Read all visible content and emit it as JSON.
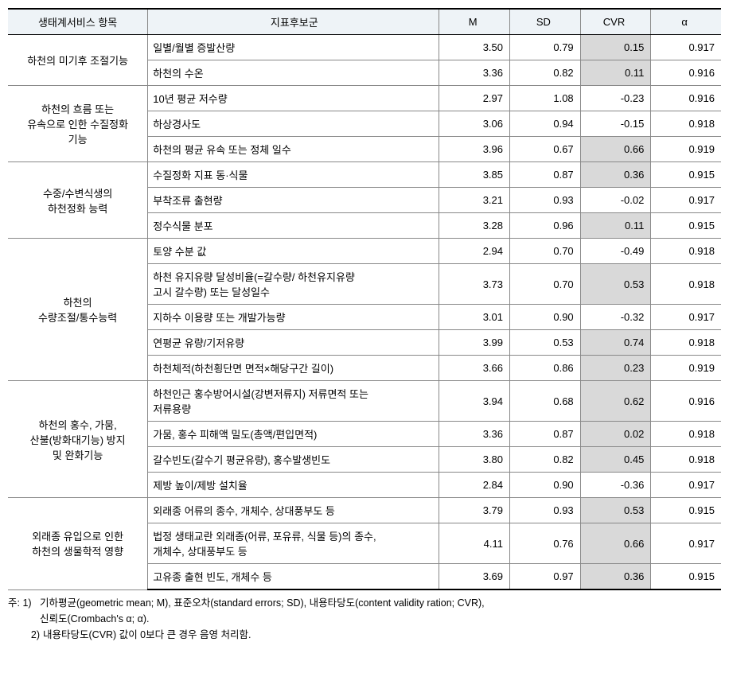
{
  "header": {
    "category": "생태계서비스 항목",
    "indicator": "지표후보군",
    "m": "M",
    "sd": "SD",
    "cvr": "CVR",
    "alpha": "α"
  },
  "colors": {
    "header_bg": "#eef3f7",
    "shade_bg": "#d9d9d9",
    "border": "#888888",
    "strong_border": "#000000",
    "text": "#000000",
    "background": "#ffffff"
  },
  "groups": [
    {
      "category": "하천의 미기후 조절기능",
      "rows": [
        {
          "indicator": "일별/월별 증발산량",
          "m": "3.50",
          "sd": "0.79",
          "cvr": "0.15",
          "cvr_shaded": true,
          "alpha": "0.917"
        },
        {
          "indicator": "하천의 수온",
          "m": "3.36",
          "sd": "0.82",
          "cvr": "0.11",
          "cvr_shaded": true,
          "alpha": "0.916"
        }
      ]
    },
    {
      "category": "하천의 흐름 또는\n유속으로 인한 수질정화\n기능",
      "rows": [
        {
          "indicator": "10년 평균 저수량",
          "m": "2.97",
          "sd": "1.08",
          "cvr": "-0.23",
          "cvr_shaded": false,
          "alpha": "0.916"
        },
        {
          "indicator": "하상경사도",
          "m": "3.06",
          "sd": "0.94",
          "cvr": "-0.15",
          "cvr_shaded": false,
          "alpha": "0.918"
        },
        {
          "indicator": "하천의 평균 유속 또는 정체 일수",
          "m": "3.96",
          "sd": "0.67",
          "cvr": "0.66",
          "cvr_shaded": true,
          "alpha": "0.919"
        }
      ]
    },
    {
      "category": "수중/수변식생의\n하천정화 능력",
      "rows": [
        {
          "indicator": "수질정화 지표 동·식물",
          "m": "3.85",
          "sd": "0.87",
          "cvr": "0.36",
          "cvr_shaded": true,
          "alpha": "0.915"
        },
        {
          "indicator": "부착조류 출현량",
          "m": "3.21",
          "sd": "0.93",
          "cvr": "-0.02",
          "cvr_shaded": false,
          "alpha": "0.917"
        },
        {
          "indicator": "정수식물 분포",
          "m": "3.28",
          "sd": "0.96",
          "cvr": "0.11",
          "cvr_shaded": true,
          "alpha": "0.915"
        }
      ]
    },
    {
      "category": "하천의\n수량조절/통수능력",
      "rows": [
        {
          "indicator": "토양 수분 값",
          "m": "2.94",
          "sd": "0.70",
          "cvr": "-0.49",
          "cvr_shaded": false,
          "alpha": "0.918"
        },
        {
          "indicator": "하천 유지유량 달성비율(=갈수량/ 하천유지유량\n고시 갈수량) 또는 달성일수",
          "m": "3.73",
          "sd": "0.70",
          "cvr": "0.53",
          "cvr_shaded": true,
          "alpha": "0.918"
        },
        {
          "indicator": "지하수 이용량 또는 개발가능량",
          "m": "3.01",
          "sd": "0.90",
          "cvr": "-0.32",
          "cvr_shaded": false,
          "alpha": "0.917"
        },
        {
          "indicator": "연평균 유량/기저유량",
          "m": "3.99",
          "sd": "0.53",
          "cvr": "0.74",
          "cvr_shaded": true,
          "alpha": "0.918"
        },
        {
          "indicator": "하천체적(하천횡단면 면적×해당구간 길이)",
          "m": "3.66",
          "sd": "0.86",
          "cvr": "0.23",
          "cvr_shaded": true,
          "alpha": "0.919"
        }
      ]
    },
    {
      "category": "하천의 홍수, 가뭄,\n산불(방화대기능) 방지\n및 완화기능",
      "rows": [
        {
          "indicator": "하천인근 홍수방어시설(강변저류지) 저류면적 또는\n저류용량",
          "m": "3.94",
          "sd": "0.68",
          "cvr": "0.62",
          "cvr_shaded": true,
          "alpha": "0.916"
        },
        {
          "indicator": "가뭄, 홍수 피해액 밀도(총액/편입면적)",
          "m": "3.36",
          "sd": "0.87",
          "cvr": "0.02",
          "cvr_shaded": true,
          "alpha": "0.918"
        },
        {
          "indicator": "갈수빈도(갈수기 평균유량), 홍수발생빈도",
          "m": "3.80",
          "sd": "0.82",
          "cvr": "0.45",
          "cvr_shaded": true,
          "alpha": "0.918"
        },
        {
          "indicator": "제방 높이/제방 설치율",
          "m": "2.84",
          "sd": "0.90",
          "cvr": "-0.36",
          "cvr_shaded": false,
          "alpha": "0.917"
        }
      ]
    },
    {
      "category": "외래종 유입으로 인한\n하천의 생물학적 영향",
      "rows": [
        {
          "indicator": "외래종 어류의 종수, 개체수, 상대풍부도 등",
          "m": "3.79",
          "sd": "0.93",
          "cvr": "0.53",
          "cvr_shaded": true,
          "alpha": "0.915"
        },
        {
          "indicator": "법정 생태교란 외래종(어류, 포유류, 식물 등)의 종수,\n개체수, 상대풍부도 등",
          "m": "4.11",
          "sd": "0.76",
          "cvr": "0.66",
          "cvr_shaded": true,
          "alpha": "0.917"
        },
        {
          "indicator": "고유종 출현 빈도, 개체수 등",
          "m": "3.69",
          "sd": "0.97",
          "cvr": "0.36",
          "cvr_shaded": true,
          "alpha": "0.915"
        }
      ]
    }
  ],
  "footnotes": {
    "label": "주:",
    "items": [
      {
        "num": "1)",
        "text": "기하평균(geometric mean; M), 표준오차(standard errors; SD), 내용타당도(content validity ration; CVR),\n신뢰도(Crombach's α; α)."
      },
      {
        "num": "2)",
        "text": "내용타당도(CVR) 값이 0보다 큰 경우 음영 처리함."
      }
    ]
  }
}
